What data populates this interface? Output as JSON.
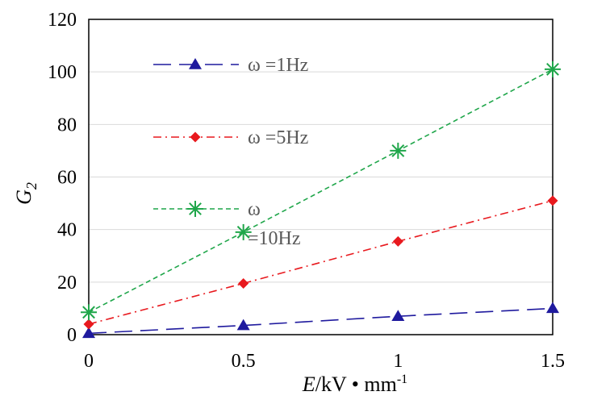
{
  "chart_data": {
    "type": "line",
    "x": [
      0,
      0.5,
      1,
      1.5
    ],
    "xlim": [
      0,
      1.5
    ],
    "ylim": [
      0,
      120
    ],
    "xticks": [
      0,
      0.5,
      1,
      1.5
    ],
    "yticks": [
      0,
      20,
      40,
      60,
      80,
      100,
      120
    ],
    "grid": "horizontal",
    "legend_position": "inside-left",
    "xlabel_parts": {
      "var": "E",
      "unit": "/kV • mm",
      "exp": "-1"
    },
    "ylabel_parts": {
      "var": "G",
      "sub": "2"
    },
    "series": [
      {
        "name": "ω =1Hz",
        "values": [
          0.5,
          3.5,
          7,
          10
        ],
        "color": "#1F1A9E",
        "marker": "triangle",
        "dash": "22,10"
      },
      {
        "name": "ω =5Hz",
        "values": [
          4,
          19.5,
          35.5,
          51
        ],
        "color": "#E8191E",
        "marker": "diamond",
        "dash": "10,5,2,5"
      },
      {
        "name_lines": [
          "ω",
          "=10Hz"
        ],
        "values": [
          8.5,
          39,
          70,
          101
        ],
        "color": "#1FA64A",
        "marker": "asterisk",
        "dash": "6,4"
      }
    ]
  }
}
